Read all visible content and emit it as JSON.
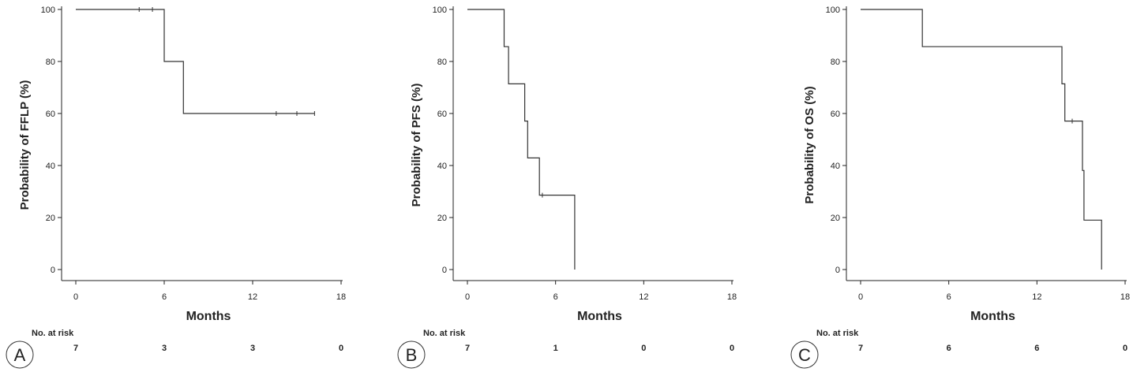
{
  "chart_data": [
    {
      "type": "line",
      "step": true,
      "panel_label": "A",
      "ylabel": "Probability of FFLP (%)",
      "xlabel": "Months",
      "xlim": [
        0,
        18
      ],
      "ylim": [
        0,
        100
      ],
      "xticks": [
        "0",
        "6",
        "12",
        "18"
      ],
      "yticks": [
        "0",
        "20",
        "40",
        "60",
        "80",
        "100"
      ],
      "series": [
        {
          "steps": [
            [
              0,
              100
            ],
            [
              6,
              100
            ],
            [
              6,
              80
            ],
            [
              7.3,
              80
            ],
            [
              7.3,
              60
            ],
            [
              16.2,
              60
            ]
          ],
          "censored": [
            [
              4.3,
              100
            ],
            [
              5.2,
              100
            ],
            [
              13.6,
              60
            ],
            [
              15,
              60
            ],
            [
              16.2,
              60
            ]
          ]
        }
      ],
      "risk_table": {
        "label": "No. at risk",
        "values": [
          "7",
          "3",
          "3",
          "0"
        ]
      }
    },
    {
      "type": "line",
      "step": true,
      "panel_label": "B",
      "ylabel": "Probability of PFS (%)",
      "xlabel": "Months",
      "xlim": [
        0,
        18
      ],
      "ylim": [
        0,
        100
      ],
      "xticks": [
        "0",
        "6",
        "12",
        "18"
      ],
      "yticks": [
        "0",
        "20",
        "40",
        "60",
        "80",
        "100"
      ],
      "series": [
        {
          "steps": [
            [
              0,
              100
            ],
            [
              2.5,
              100
            ],
            [
              2.5,
              85.7
            ],
            [
              2.8,
              85.7
            ],
            [
              2.8,
              71.4
            ],
            [
              3.9,
              71.4
            ],
            [
              3.9,
              57.1
            ],
            [
              4.1,
              57.1
            ],
            [
              4.1,
              42.9
            ],
            [
              4.9,
              42.9
            ],
            [
              4.9,
              28.6
            ],
            [
              7.3,
              28.6
            ],
            [
              7.3,
              0
            ]
          ],
          "censored": [
            [
              5.1,
              28.6
            ]
          ]
        }
      ],
      "risk_table": {
        "label": "No. at risk",
        "values": [
          "7",
          "1",
          "0",
          "0"
        ]
      }
    },
    {
      "type": "line",
      "step": true,
      "panel_label": "C",
      "ylabel": "Probability of OS (%)",
      "xlabel": "Months",
      "xlim": [
        0,
        18
      ],
      "ylim": [
        0,
        100
      ],
      "xticks": [
        "0",
        "6",
        "12",
        "18"
      ],
      "yticks": [
        "0",
        "20",
        "40",
        "60",
        "80",
        "100"
      ],
      "series": [
        {
          "steps": [
            [
              0,
              100
            ],
            [
              4.2,
              100
            ],
            [
              4.2,
              85.7
            ],
            [
              13.7,
              85.7
            ],
            [
              13.7,
              71.4
            ],
            [
              13.9,
              71.4
            ],
            [
              13.9,
              57.1
            ],
            [
              15.1,
              57.1
            ],
            [
              15.1,
              38.1
            ],
            [
              15.2,
              38.1
            ],
            [
              15.2,
              19
            ],
            [
              16.4,
              19
            ],
            [
              16.4,
              0
            ]
          ],
          "censored": [
            [
              14.4,
              57.1
            ]
          ]
        }
      ],
      "risk_table": {
        "label": "No. at risk",
        "values": [
          "7",
          "6",
          "6",
          "0"
        ]
      }
    }
  ]
}
